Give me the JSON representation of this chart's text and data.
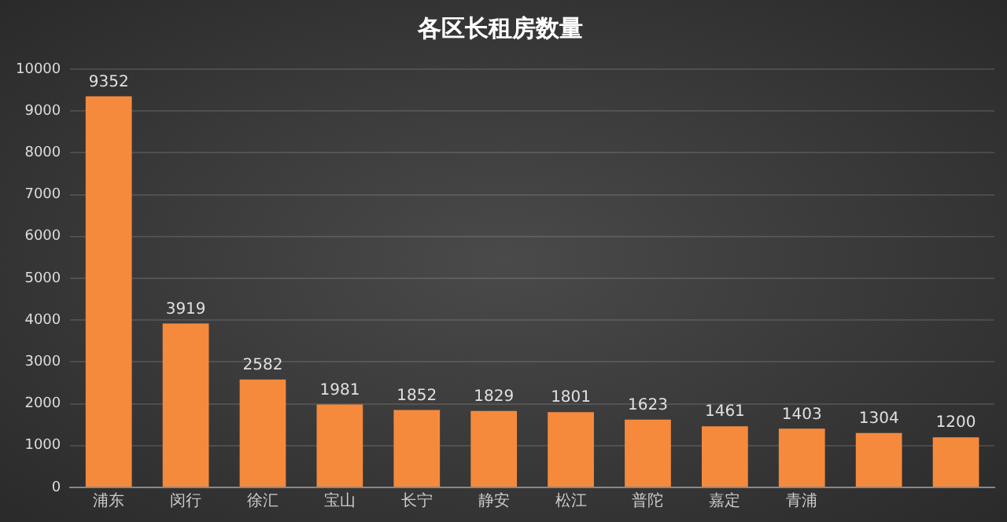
{
  "chart_data": {
    "type": "bar",
    "title": "各区长租房数量",
    "categories": [
      "浦东",
      "闵行",
      "徐汇",
      "宝山",
      "长宁",
      "静安",
      "松江",
      "普陀",
      "嘉定",
      "青浦",
      null,
      null
    ],
    "values": [
      9352,
      3919,
      2582,
      1981,
      1852,
      1829,
      1801,
      1623,
      1461,
      1403,
      1304,
      1200
    ],
    "color": "#f58a3c",
    "ylim": [
      0,
      10000
    ],
    "yticks": [
      0,
      1000,
      2000,
      3000,
      4000,
      5000,
      6000,
      7000,
      8000,
      9000,
      10000
    ],
    "grid": "y",
    "data_labels": true,
    "legend": false
  }
}
